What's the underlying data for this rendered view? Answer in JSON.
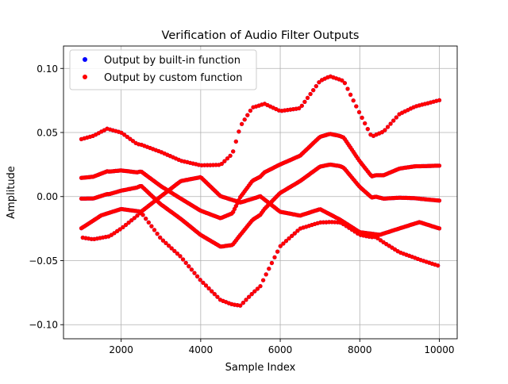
{
  "chart_data": {
    "type": "scatter",
    "title": "Verification of Audio Filter Outputs",
    "xlabel": "Sample Index",
    "ylabel": "Amplitude",
    "xlim": [
      550,
      10450
    ],
    "ylim": [
      -0.111,
      0.1175
    ],
    "xticks": [
      2000,
      4000,
      6000,
      8000,
      10000
    ],
    "xtick_labels": [
      "2000",
      "4000",
      "6000",
      "8000",
      "10000"
    ],
    "yticks": [
      -0.1,
      -0.05,
      0.0,
      0.05,
      0.1
    ],
    "ytick_labels": [
      "−0.10",
      "−0.05",
      "0.00",
      "0.05",
      "0.10"
    ],
    "grid": true,
    "legend": {
      "placement": "top-left"
    },
    "series": [
      {
        "name": "Output by built-in function",
        "color": "#0000ff",
        "x_start": 1000,
        "x_end": 10000,
        "x_step": 36,
        "oscillation_period": 36,
        "upper_envelope": [
          [
            1000,
            0.053
          ],
          [
            1300,
            0.056
          ],
          [
            1650,
            0.062
          ],
          [
            2000,
            0.058
          ],
          [
            2400,
            0.047
          ],
          [
            3000,
            0.042
          ],
          [
            3500,
            0.036
          ],
          [
            4000,
            0.034
          ],
          [
            4500,
            0.036
          ],
          [
            4800,
            0.046
          ],
          [
            5000,
            0.07
          ],
          [
            5300,
            0.085
          ],
          [
            5600,
            0.087
          ],
          [
            6000,
            0.078
          ],
          [
            6500,
            0.079
          ],
          [
            7000,
            0.102
          ],
          [
            7250,
            0.106
          ],
          [
            7600,
            0.102
          ],
          [
            8000,
            0.075
          ],
          [
            8300,
            0.055
          ],
          [
            8600,
            0.06
          ],
          [
            9000,
            0.076
          ],
          [
            9400,
            0.083
          ],
          [
            10000,
            0.089
          ]
        ],
        "lower_envelope": [
          [
            1000,
            -0.04
          ],
          [
            1300,
            -0.042
          ],
          [
            1700,
            -0.04
          ],
          [
            2000,
            -0.033
          ],
          [
            2500,
            -0.018
          ],
          [
            3000,
            -0.04
          ],
          [
            3500,
            -0.055
          ],
          [
            4000,
            -0.075
          ],
          [
            4500,
            -0.092
          ],
          [
            5000,
            -0.1
          ],
          [
            5500,
            -0.085
          ],
          [
            6000,
            -0.05
          ],
          [
            6500,
            -0.035
          ],
          [
            7000,
            -0.032
          ],
          [
            7500,
            -0.032
          ],
          [
            8000,
            -0.04
          ],
          [
            8400,
            -0.04
          ],
          [
            9000,
            -0.055
          ],
          [
            9500,
            -0.062
          ],
          [
            10000,
            -0.068
          ]
        ],
        "mid_high": [
          [
            1000,
            0.01
          ],
          [
            1500,
            0.032
          ],
          [
            2000,
            0.028
          ],
          [
            2500,
            0.012
          ],
          [
            3000,
            0.025
          ],
          [
            3500,
            0.03
          ],
          [
            4000,
            0.034
          ],
          [
            4500,
            0.037
          ],
          [
            5000,
            0.046
          ],
          [
            5500,
            0.03
          ],
          [
            6000,
            0.005
          ],
          [
            6500,
            0.005
          ],
          [
            7000,
            0.015
          ],
          [
            7500,
            -0.005
          ],
          [
            8000,
            0.0
          ],
          [
            8500,
            -0.01
          ],
          [
            9000,
            -0.005
          ],
          [
            9500,
            -0.012
          ],
          [
            10000,
            -0.01
          ]
        ],
        "mid_low": [
          [
            1000,
            -0.025
          ],
          [
            1500,
            -0.015
          ],
          [
            2000,
            -0.01
          ],
          [
            2500,
            -0.012
          ],
          [
            3000,
            0.0
          ],
          [
            3500,
            0.012
          ],
          [
            4000,
            0.015
          ],
          [
            4500,
            0.0
          ],
          [
            5000,
            -0.005
          ],
          [
            5500,
            0.0
          ],
          [
            6000,
            -0.012
          ],
          [
            6500,
            -0.015
          ],
          [
            7000,
            -0.01
          ],
          [
            7500,
            -0.018
          ],
          [
            8000,
            -0.028
          ],
          [
            8500,
            -0.03
          ],
          [
            9000,
            -0.025
          ],
          [
            9500,
            -0.02
          ],
          [
            10000,
            -0.025
          ]
        ]
      },
      {
        "name": "Output by custom function",
        "color": "#ff0000",
        "x_start": 1000,
        "x_end": 10000,
        "x_step": 36,
        "oscillation_period": 36,
        "upper_envelope": [
          [
            1000,
            0.053
          ],
          [
            1300,
            0.056
          ],
          [
            1650,
            0.062
          ],
          [
            2000,
            0.058
          ],
          [
            2400,
            0.047
          ],
          [
            3000,
            0.042
          ],
          [
            3500,
            0.036
          ],
          [
            4000,
            0.034
          ],
          [
            4500,
            0.036
          ],
          [
            4800,
            0.046
          ],
          [
            5000,
            0.07
          ],
          [
            5300,
            0.085
          ],
          [
            5600,
            0.087
          ],
          [
            6000,
            0.078
          ],
          [
            6500,
            0.079
          ],
          [
            7000,
            0.102
          ],
          [
            7250,
            0.106
          ],
          [
            7600,
            0.102
          ],
          [
            8000,
            0.075
          ],
          [
            8300,
            0.055
          ],
          [
            8600,
            0.06
          ],
          [
            9000,
            0.076
          ],
          [
            9400,
            0.083
          ],
          [
            10000,
            0.089
          ]
        ],
        "lower_envelope": [
          [
            1000,
            -0.04
          ],
          [
            1300,
            -0.042
          ],
          [
            1700,
            -0.04
          ],
          [
            2000,
            -0.033
          ],
          [
            2500,
            -0.018
          ],
          [
            3000,
            -0.04
          ],
          [
            3500,
            -0.055
          ],
          [
            4000,
            -0.075
          ],
          [
            4500,
            -0.092
          ],
          [
            5000,
            -0.1
          ],
          [
            5500,
            -0.085
          ],
          [
            6000,
            -0.05
          ],
          [
            6500,
            -0.035
          ],
          [
            7000,
            -0.032
          ],
          [
            7500,
            -0.032
          ],
          [
            8000,
            -0.04
          ],
          [
            8400,
            -0.04
          ],
          [
            9000,
            -0.055
          ],
          [
            9500,
            -0.062
          ],
          [
            10000,
            -0.068
          ]
        ],
        "mid_high": [
          [
            1000,
            0.01
          ],
          [
            1500,
            0.032
          ],
          [
            2000,
            0.028
          ],
          [
            2500,
            0.012
          ],
          [
            3000,
            0.025
          ],
          [
            3500,
            0.03
          ],
          [
            4000,
            0.034
          ],
          [
            4500,
            0.037
          ],
          [
            5000,
            0.046
          ],
          [
            5500,
            0.03
          ],
          [
            6000,
            0.005
          ],
          [
            6500,
            0.005
          ],
          [
            7000,
            0.015
          ],
          [
            7500,
            -0.005
          ],
          [
            8000,
            0.0
          ],
          [
            8500,
            -0.01
          ],
          [
            9000,
            -0.005
          ],
          [
            9500,
            -0.012
          ],
          [
            10000,
            -0.01
          ]
        ],
        "mid_low": [
          [
            1000,
            -0.025
          ],
          [
            1500,
            -0.015
          ],
          [
            2000,
            -0.01
          ],
          [
            2500,
            -0.012
          ],
          [
            3000,
            0.0
          ],
          [
            3500,
            0.012
          ],
          [
            4000,
            0.015
          ],
          [
            4500,
            0.0
          ],
          [
            5000,
            -0.005
          ],
          [
            5500,
            0.0
          ],
          [
            6000,
            -0.012
          ],
          [
            6500,
            -0.015
          ],
          [
            7000,
            -0.01
          ],
          [
            7500,
            -0.018
          ],
          [
            8000,
            -0.028
          ],
          [
            8500,
            -0.03
          ],
          [
            9000,
            -0.025
          ],
          [
            9500,
            -0.02
          ],
          [
            10000,
            -0.025
          ]
        ]
      }
    ]
  }
}
